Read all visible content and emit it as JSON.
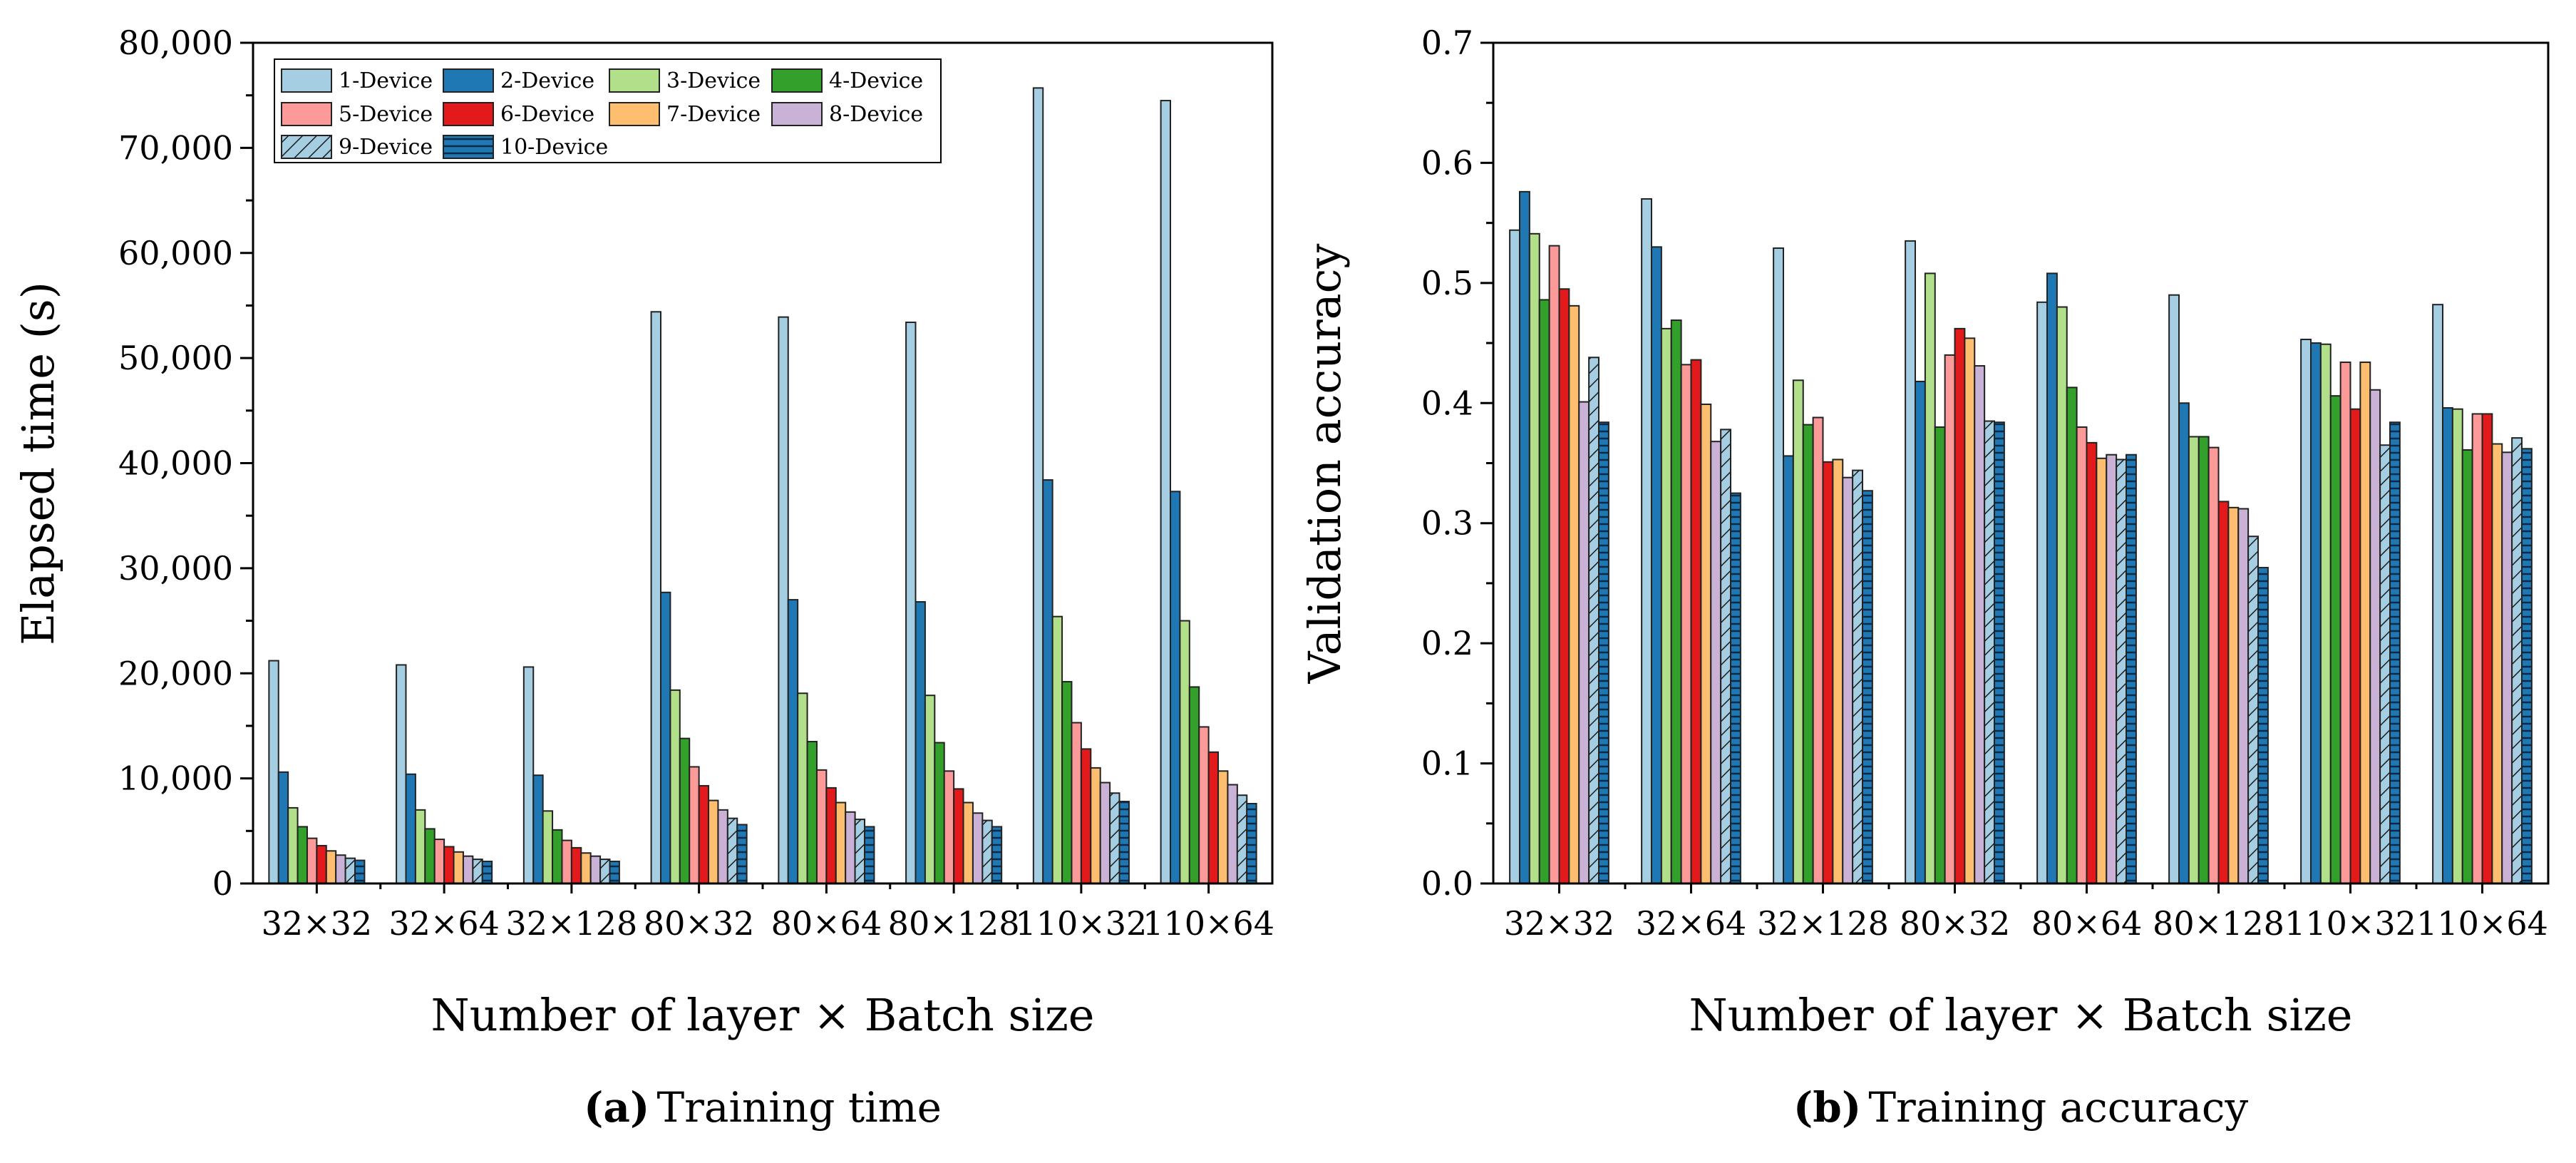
{
  "devices": [
    {
      "name": "1-Device",
      "color": "#a6cee3",
      "hatch": false
    },
    {
      "name": "2-Device",
      "color": "#1f78b4",
      "hatch": false
    },
    {
      "name": "3-Device",
      "color": "#b2df8a",
      "hatch": false
    },
    {
      "name": "4-Device",
      "color": "#33a02c",
      "hatch": false
    },
    {
      "name": "5-Device",
      "color": "#fb9a99",
      "hatch": false
    },
    {
      "name": "6-Device",
      "color": "#e31a1c",
      "hatch": false
    },
    {
      "name": "7-Device",
      "color": "#fdbf6f",
      "hatch": false
    },
    {
      "name": "8-Device",
      "color": "#cab2d6",
      "hatch": false
    },
    {
      "name": "9-Device",
      "color": "#a6cee3",
      "hatch": true
    },
    {
      "name": "10-Device",
      "color": "#1f78b4",
      "hatch": true
    }
  ],
  "captions": {
    "a_label": "(a)",
    "a_text": "Training time",
    "b_label": "(b)",
    "b_text": "Training accuracy"
  },
  "chart_data": [
    {
      "type": "bar",
      "title": "",
      "xlabel": "Number of layer × Batch size",
      "ylabel": "Elapsed time (s)",
      "ylim": [
        0,
        80000
      ],
      "yticks": [
        0,
        10000,
        20000,
        30000,
        40000,
        50000,
        60000,
        70000,
        80000
      ],
      "ytick_labels": [
        "0",
        "10,000",
        "20,000",
        "30,000",
        "40,000",
        "50,000",
        "60,000",
        "70,000",
        "80,000"
      ],
      "legend": "top-left",
      "categories": [
        "32×32",
        "32×64",
        "32×128",
        "80×32",
        "80×64",
        "80×128",
        "110×32",
        "110×64"
      ],
      "series": [
        {
          "name": "1-Device",
          "values": [
            21200,
            20800,
            20600,
            54400,
            53900,
            53400,
            75700,
            74500
          ]
        },
        {
          "name": "2-Device",
          "values": [
            10600,
            10400,
            10300,
            27700,
            27000,
            26800,
            38400,
            37300
          ]
        },
        {
          "name": "3-Device",
          "values": [
            7200,
            7000,
            6900,
            18400,
            18100,
            17900,
            25400,
            25000
          ]
        },
        {
          "name": "4-Device",
          "values": [
            5400,
            5200,
            5100,
            13800,
            13500,
            13400,
            19200,
            18700
          ]
        },
        {
          "name": "5-Device",
          "values": [
            4300,
            4200,
            4100,
            11100,
            10800,
            10700,
            15300,
            14900
          ]
        },
        {
          "name": "6-Device",
          "values": [
            3600,
            3500,
            3400,
            9300,
            9100,
            9000,
            12800,
            12500
          ]
        },
        {
          "name": "7-Device",
          "values": [
            3100,
            3000,
            2900,
            7900,
            7700,
            7700,
            11000,
            10700
          ]
        },
        {
          "name": "8-Device",
          "values": [
            2700,
            2600,
            2600,
            7000,
            6800,
            6700,
            9600,
            9400
          ]
        },
        {
          "name": "9-Device",
          "values": [
            2400,
            2300,
            2300,
            6200,
            6100,
            6000,
            8600,
            8400
          ]
        },
        {
          "name": "10-Device",
          "values": [
            2200,
            2100,
            2100,
            5600,
            5400,
            5400,
            7800,
            7600
          ]
        }
      ]
    },
    {
      "type": "bar",
      "title": "",
      "xlabel": "Number of layer × Batch size",
      "ylabel": "Validation accuracy",
      "ylim": [
        0,
        0.7
      ],
      "yticks": [
        0,
        0.1,
        0.2,
        0.3,
        0.4,
        0.5,
        0.6,
        0.7
      ],
      "ytick_labels": [
        "0.0",
        "0.1",
        "0.2",
        "0.3",
        "0.4",
        "0.5",
        "0.6",
        "0.7"
      ],
      "categories": [
        "32×32",
        "32×64",
        "32×128",
        "80×32",
        "80×64",
        "80×128",
        "110×32",
        "110×64"
      ],
      "series": [
        {
          "name": "1-Device",
          "values": [
            0.544,
            0.57,
            0.529,
            0.535,
            0.484,
            0.49,
            0.453,
            0.482
          ]
        },
        {
          "name": "2-Device",
          "values": [
            0.576,
            0.53,
            0.356,
            0.418,
            0.508,
            0.4,
            0.45,
            0.396
          ]
        },
        {
          "name": "3-Device",
          "values": [
            0.541,
            0.462,
            0.419,
            0.508,
            0.48,
            0.372,
            0.449,
            0.395
          ]
        },
        {
          "name": "4-Device",
          "values": [
            0.486,
            0.469,
            0.382,
            0.38,
            0.413,
            0.372,
            0.406,
            0.361
          ]
        },
        {
          "name": "5-Device",
          "values": [
            0.531,
            0.432,
            0.388,
            0.44,
            0.38,
            0.363,
            0.434,
            0.391
          ]
        },
        {
          "name": "6-Device",
          "values": [
            0.495,
            0.436,
            0.351,
            0.462,
            0.367,
            0.318,
            0.395,
            0.391
          ]
        },
        {
          "name": "7-Device",
          "values": [
            0.481,
            0.399,
            0.353,
            0.454,
            0.354,
            0.313,
            0.434,
            0.366
          ]
        },
        {
          "name": "8-Device",
          "values": [
            0.401,
            0.368,
            0.338,
            0.431,
            0.357,
            0.312,
            0.411,
            0.359
          ]
        },
        {
          "name": "9-Device",
          "values": [
            0.438,
            0.378,
            0.344,
            0.385,
            0.353,
            0.289,
            0.365,
            0.371
          ]
        },
        {
          "name": "10-Device",
          "values": [
            0.384,
            0.325,
            0.327,
            0.384,
            0.357,
            0.263,
            0.384,
            0.362
          ]
        }
      ]
    }
  ]
}
